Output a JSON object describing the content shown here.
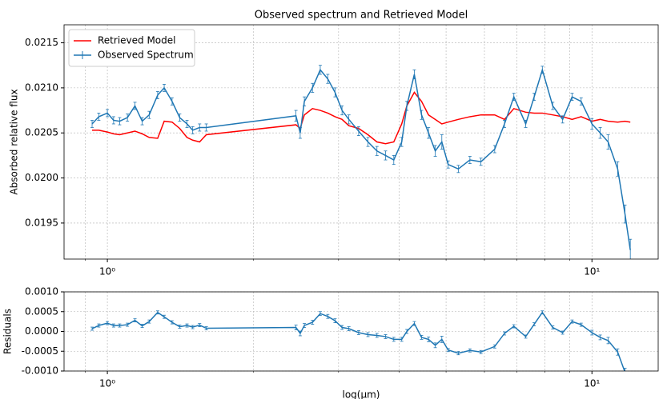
{
  "chart_data": [
    {
      "type": "line",
      "title": "Observed spectrum and Retrieved Model",
      "ylabel": "Absorbed relative flux",
      "xscale": "log",
      "grid": true,
      "legend": "upper left",
      "xlim": [
        0.814,
        13.7
      ],
      "ylim": [
        0.0191,
        0.0217
      ],
      "xticks": [
        {
          "value": 1,
          "label": "10⁰"
        },
        {
          "value": 10,
          "label": "10¹"
        }
      ],
      "xminorticks": [
        0.9,
        2,
        3,
        4,
        5,
        6,
        7,
        8,
        9
      ],
      "yticks": [
        0.0195,
        {
          "value": 0.02,
          "label": "0.0200"
        },
        0.0205,
        {
          "value": 0.021,
          "label": "0.0210"
        },
        0.0215
      ],
      "x": [
        0.93,
        0.96,
        1.0,
        1.03,
        1.06,
        1.1,
        1.14,
        1.18,
        1.22,
        1.27,
        1.31,
        1.36,
        1.41,
        1.46,
        1.5,
        1.55,
        1.6,
        2.45,
        2.5,
        2.55,
        2.65,
        2.75,
        2.85,
        2.95,
        3.05,
        3.15,
        3.3,
        3.45,
        3.6,
        3.75,
        3.9,
        4.05,
        4.15,
        4.3,
        4.45,
        4.6,
        4.75,
        4.9,
        5.05,
        5.3,
        5.6,
        5.9,
        6.3,
        6.6,
        6.9,
        7.3,
        7.6,
        7.9,
        8.3,
        8.7,
        9.1,
        9.5,
        10.0,
        10.4,
        10.8,
        11.3,
        11.7,
        12.0
      ],
      "series": [
        {
          "name": "Retrieved Model",
          "color": "#ff0000",
          "values": [
            0.02053,
            0.02053,
            0.02051,
            0.02049,
            0.02048,
            0.0205,
            0.02052,
            0.02049,
            0.02045,
            0.02044,
            0.02063,
            0.02062,
            0.02055,
            0.02045,
            0.02042,
            0.0204,
            0.02048,
            0.02059,
            0.02055,
            0.0207,
            0.02077,
            0.02075,
            0.02072,
            0.02068,
            0.02065,
            0.02058,
            0.02055,
            0.02048,
            0.0204,
            0.02038,
            0.0204,
            0.0206,
            0.0208,
            0.02095,
            0.02085,
            0.0207,
            0.02065,
            0.0206,
            0.02062,
            0.02065,
            0.02068,
            0.0207,
            0.0207,
            0.02065,
            0.02077,
            0.02073,
            0.02072,
            0.02072,
            0.0207,
            0.02068,
            0.02065,
            0.02068,
            0.02063,
            0.02065,
            0.02063,
            0.02062,
            0.02063,
            0.02062
          ]
        },
        {
          "name": "Observed Spectrum",
          "color": "#1f77b4",
          "values": [
            0.0206,
            0.02068,
            0.02072,
            0.02064,
            0.02063,
            0.02067,
            0.0208,
            0.02063,
            0.0207,
            0.02092,
            0.021,
            0.02085,
            0.02067,
            0.0206,
            0.02053,
            0.02056,
            0.02056,
            0.02069,
            0.0205,
            0.02085,
            0.021,
            0.0212,
            0.0211,
            0.02095,
            0.02075,
            0.02065,
            0.02052,
            0.0204,
            0.0203,
            0.02025,
            0.0202,
            0.0204,
            0.0208,
            0.02115,
            0.0207,
            0.0205,
            0.0203,
            0.0204,
            0.02015,
            0.0201,
            0.0202,
            0.02018,
            0.02032,
            0.0206,
            0.0209,
            0.0206,
            0.0209,
            0.0212,
            0.0208,
            0.02065,
            0.0209,
            0.02085,
            0.0206,
            0.0205,
            0.0204,
            0.0201,
            0.0196,
            0.0192
          ],
          "errors": [
            4e-05,
            4e-05,
            4e-05,
            4e-05,
            4e-05,
            4e-05,
            4e-05,
            4e-05,
            4e-05,
            4e-05,
            4e-05,
            4e-05,
            4e-05,
            4e-05,
            4e-05,
            4e-05,
            4e-05,
            6e-05,
            6e-05,
            5e-05,
            5e-05,
            5e-05,
            5e-05,
            5e-05,
            5e-05,
            5e-05,
            5e-05,
            5e-05,
            5e-05,
            5e-05,
            5e-05,
            5e-05,
            5e-05,
            5e-05,
            5e-05,
            6e-05,
            6e-05,
            8e-05,
            4e-05,
            4e-05,
            4e-05,
            4e-05,
            4e-05,
            4e-05,
            4e-05,
            4e-05,
            4e-05,
            4e-05,
            4e-05,
            4e-05,
            4e-05,
            4e-05,
            6e-05,
            6e-05,
            8e-05,
            8e-05,
            0.0001,
            0.00012
          ]
        }
      ]
    },
    {
      "type": "line",
      "ylabel": "Residuals",
      "xlabel": "log(µm)",
      "xscale": "log",
      "grid": true,
      "xlim": [
        0.814,
        13.7
      ],
      "ylim": [
        -0.001,
        0.001
      ],
      "xticks": [
        {
          "value": 1,
          "label": "10⁰"
        },
        {
          "value": 10,
          "label": "10¹"
        }
      ],
      "xminorticks": [
        0.9,
        2,
        3,
        4,
        5,
        6,
        7,
        8,
        9
      ],
      "yticks": [
        {
          "value": -0.001,
          "label": "-0.0010"
        },
        {
          "value": -0.0005,
          "label": "-0.0005"
        },
        {
          "value": 0,
          "label": "0.0000"
        },
        {
          "value": 0.0005,
          "label": "0.0005"
        },
        {
          "value": 0.001,
          "label": "0.0010"
        }
      ],
      "x": [
        0.93,
        0.96,
        1.0,
        1.03,
        1.06,
        1.1,
        1.14,
        1.18,
        1.22,
        1.27,
        1.31,
        1.36,
        1.41,
        1.46,
        1.5,
        1.55,
        1.6,
        2.45,
        2.5,
        2.55,
        2.65,
        2.75,
        2.85,
        2.95,
        3.05,
        3.15,
        3.3,
        3.45,
        3.6,
        3.75,
        3.9,
        4.05,
        4.15,
        4.3,
        4.45,
        4.6,
        4.75,
        4.9,
        5.05,
        5.3,
        5.6,
        5.9,
        6.3,
        6.6,
        6.9,
        7.3,
        7.6,
        7.9,
        8.3,
        8.7,
        9.1,
        9.5,
        10.0,
        10.4,
        10.8,
        11.3,
        11.7,
        12.0
      ],
      "series": [
        {
          "color": "#1f77b4",
          "values": [
            7e-05,
            0.00015,
            0.00021,
            0.00015,
            0.00015,
            0.00017,
            0.00028,
            0.00014,
            0.00025,
            0.00048,
            0.00037,
            0.00023,
            0.00012,
            0.00015,
            0.00011,
            0.00016,
            8e-05,
            0.0001,
            -5e-05,
            0.00015,
            0.00023,
            0.00045,
            0.00038,
            0.00027,
            0.0001,
            7e-05,
            -3e-05,
            -8e-05,
            -0.0001,
            -0.00013,
            -0.0002,
            -0.0002,
            0,
            0.0002,
            -0.00015,
            -0.0002,
            -0.00035,
            -0.0002,
            -0.00047,
            -0.00055,
            -0.00048,
            -0.00052,
            -0.00038,
            -5e-05,
            0.00013,
            -0.00013,
            0.00018,
            0.00048,
            0.0001,
            -3e-05,
            0.00025,
            0.00017,
            -3e-05,
            -0.00015,
            -0.00023,
            -0.00052,
            -0.00103,
            -0.00142
          ],
          "errors": [
            4e-05,
            4e-05,
            4e-05,
            4e-05,
            4e-05,
            4e-05,
            4e-05,
            4e-05,
            4e-05,
            4e-05,
            4e-05,
            4e-05,
            4e-05,
            4e-05,
            4e-05,
            4e-05,
            4e-05,
            6e-05,
            6e-05,
            5e-05,
            5e-05,
            5e-05,
            5e-05,
            5e-05,
            5e-05,
            5e-05,
            5e-05,
            5e-05,
            5e-05,
            5e-05,
            5e-05,
            5e-05,
            5e-05,
            5e-05,
            5e-05,
            6e-05,
            6e-05,
            8e-05,
            4e-05,
            4e-05,
            4e-05,
            4e-05,
            4e-05,
            4e-05,
            4e-05,
            4e-05,
            4e-05,
            4e-05,
            4e-05,
            4e-05,
            4e-05,
            4e-05,
            6e-05,
            6e-05,
            8e-05,
            8e-05,
            0.0001,
            0.00012
          ]
        }
      ]
    }
  ]
}
